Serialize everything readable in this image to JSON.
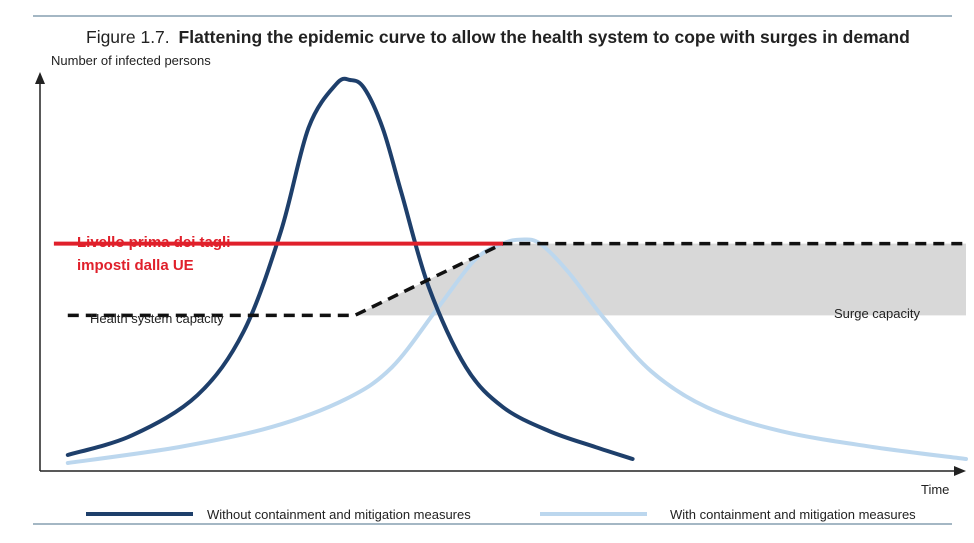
{
  "figure": {
    "number": "Figure 1.7.",
    "title": "Flattening the epidemic curve to allow the health system to cope with surges in demand"
  },
  "annotation": {
    "line1": "Livello prima dei tagli",
    "line2": "imposti dalla UE",
    "color": "#e0202b"
  },
  "labels": {
    "health_capacity": "Health system capacity",
    "surge_capacity": "Surge capacity"
  },
  "colors": {
    "dark_series": "#1e3f6b",
    "light_series": "#bcd7ee",
    "surge_band": "#d8d8d8",
    "capacity_line": "#111111",
    "rule": "#4a6f8a"
  },
  "chart_data": {
    "type": "line",
    "title": "Flattening the epidemic curve to allow the health system to cope with surges in demand",
    "xlabel": "Time",
    "ylabel": "Number of infected persons",
    "xlim": [
      0,
      100
    ],
    "ylim": [
      0,
      100
    ],
    "grid": false,
    "legend_position": "bottom",
    "series": [
      {
        "name": "Without containment and mitigation measures",
        "color": "#1e3f6b",
        "x": [
          3,
          10,
          17,
          22,
          26,
          29,
          32,
          33.5,
          35,
          37,
          39,
          42,
          46,
          50,
          55,
          60,
          64
        ],
        "y": [
          4,
          9,
          19,
          35,
          60,
          86,
          97,
          98,
          96,
          86,
          70,
          46,
          26,
          16,
          10,
          6,
          3
        ]
      },
      {
        "name": "With containment and mitigation measures",
        "color": "#bcd7ee",
        "x": [
          3,
          15,
          25,
          33,
          38,
          43,
          47,
          50,
          52,
          54,
          57,
          61,
          66,
          72,
          80,
          90,
          100
        ],
        "y": [
          2,
          6,
          11,
          18,
          26,
          41,
          53,
          57,
          58,
          57,
          50,
          38,
          25,
          16,
          10,
          6,
          3
        ]
      }
    ],
    "reference_lines": [
      {
        "name": "Health system capacity",
        "style": "dashed",
        "x": [
          3,
          34,
          50,
          100
        ],
        "y": [
          39,
          39,
          57,
          57
        ]
      },
      {
        "name": "Livello prima dei tagli imposti dalla UE",
        "style": "solid",
        "x": [
          1.5,
          50
        ],
        "y": [
          57,
          57
        ]
      }
    ],
    "bands": [
      {
        "name": "Surge capacity",
        "polygon_x": [
          34,
          50,
          100,
          100
        ],
        "polygon_y": [
          39,
          57,
          57,
          39
        ]
      }
    ]
  }
}
